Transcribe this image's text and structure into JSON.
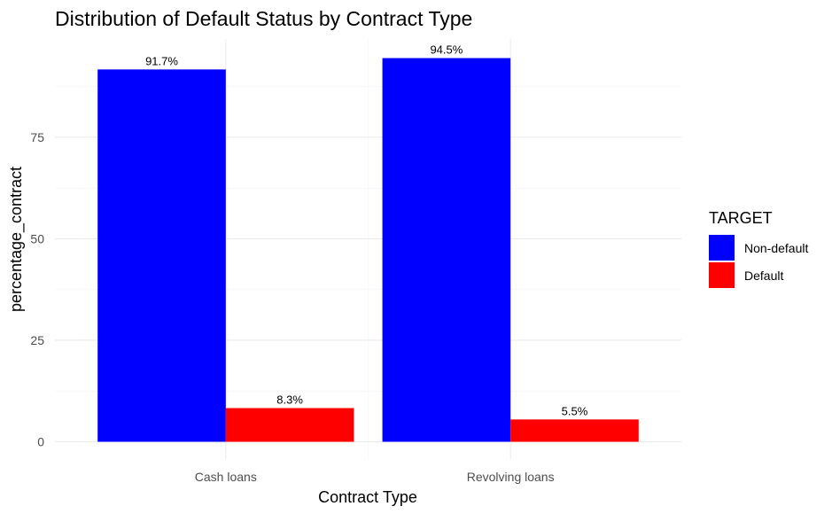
{
  "chart_data": {
    "type": "bar",
    "title": "Distribution of Default Status by Contract Type",
    "xlabel": "Contract Type",
    "ylabel": "percentage_contract",
    "categories": [
      "Cash loans",
      "Revolving loans"
    ],
    "series": [
      {
        "name": "Non-default",
        "color": "#0000ff",
        "values": [
          91.7,
          94.5
        ],
        "labels": [
          "91.7%",
          "94.5%"
        ]
      },
      {
        "name": "Default",
        "color": "#ff0000",
        "values": [
          8.3,
          5.5
        ],
        "labels": [
          "8.3%",
          "5.5%"
        ]
      }
    ],
    "ylim": [
      0,
      99.2
    ],
    "yticks": [
      0,
      25,
      50,
      75
    ],
    "ytick_labels": [
      "0",
      "25",
      "50",
      "75"
    ],
    "grid": true,
    "legend": {
      "title": "TARGET",
      "position": "right"
    }
  }
}
